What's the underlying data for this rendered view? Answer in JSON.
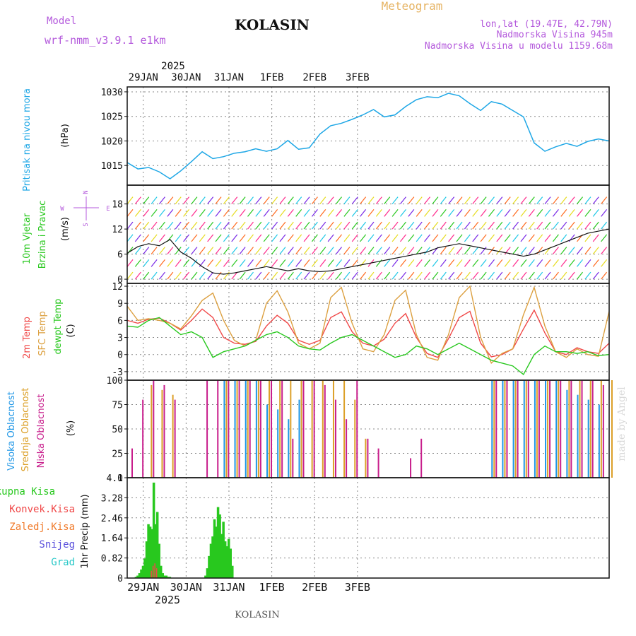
{
  "header": {
    "model_label": "Model",
    "model_name": "wrf-nmm_v3.9.1 e1km",
    "station": "KOLASIN",
    "title": "Meteogram",
    "coords": "lon,lat (19.47E, 42.79N)",
    "elev": "Nadmorska Visina 945m",
    "elev_model": "Nadmorska Visina u modelu 1159.68m",
    "footer": "KOLASIN",
    "watermark": "made by Angel"
  },
  "axis": {
    "year": "2025",
    "dates": [
      "29JAN",
      "30JAN",
      "31JAN",
      "1FEB",
      "2FEB",
      "3FEB"
    ]
  },
  "labels": {
    "p1_title": "Pritisak na nivou mora",
    "p1_unit": "(hPa)",
    "p2_a": "10m Vjetar",
    "p2_b": "Brzina i Pravac",
    "p2_unit": "(m/s)",
    "compass_n": "N",
    "compass_s": "S",
    "compass_e": "E",
    "compass_w": "W",
    "p3_a": "2m Temp",
    "p3_b": "SFC Temp",
    "p3_c": "dewpt Temp",
    "p3_unit": "(C)",
    "p4_a": "Visoka Oblacnost",
    "p4_b": "Srednja Oblacnost",
    "p4_c": "Niska Oblacnost",
    "p4_unit": "(%)",
    "p5_unit": "1hr Precip (mm)",
    "leg_total": "Ukupna Kisa",
    "leg_conv": "Konvek.Kisa",
    "leg_frz": "Zaledj.Kisa",
    "leg_snow": "Snijeg",
    "leg_grad": "Grad"
  },
  "colors": {
    "pressure": "#1ea7e6",
    "t2m": "#f04848",
    "sfc": "#dca040",
    "dew": "#28c81e",
    "high_cloud": "#1e96e6",
    "mid_cloud": "#dca028",
    "low_cloud": "#c81e8c",
    "precip": "#28c81e",
    "model": "#b45adc",
    "title": "#e6b464"
  },
  "chart_data": [
    {
      "type": "line",
      "name": "pressure",
      "xlabel": "",
      "ylabel": "Pritisak na nivou mora (hPa)",
      "ylim": [
        1011,
        1031
      ],
      "yticks": [
        1015,
        1020,
        1025,
        1030
      ],
      "grid": true,
      "x_start": "2025-01-28 15:00",
      "x_step_hours": 6,
      "series": [
        {
          "values": [
            1015.6,
            1014.3,
            1014.6,
            1013.7,
            1012.3,
            1013.9,
            1015.8,
            1017.8,
            1016.4,
            1016.8,
            1017.5,
            1017.8,
            1018.4,
            1017.9,
            1018.4,
            1020.1,
            1018.3,
            1018.6,
            1021.4,
            1023.1,
            1023.6,
            1024.4,
            1025.3,
            1026.4,
            1024.9,
            1025.3,
            1027.0,
            1028.4,
            1029.0,
            1028.8,
            1029.7,
            1029.2,
            1027.6,
            1026.2,
            1028.0,
            1027.5,
            1026.2,
            1024.9,
            1019.6,
            1017.9,
            1018.8,
            1019.5,
            1018.9,
            1019.9,
            1020.4,
            1020.0
          ]
        }
      ]
    },
    {
      "type": "line",
      "name": "wind",
      "xlabel": "",
      "ylabel": "10m Vjetar Brzina i Pravac (m/s)",
      "ylim": [
        -1,
        22.5
      ],
      "yticks": [
        0,
        6,
        12,
        18
      ],
      "grid": true,
      "x_start": "2025-01-28 15:00",
      "x_step_hours": 6,
      "series": [
        {
          "name": "speed",
          "values": [
            6.2,
            7.8,
            8.5,
            8.0,
            9.5,
            6.5,
            5.0,
            3.0,
            1.5,
            1.2,
            1.5,
            2.0,
            2.5,
            3.0,
            2.5,
            2.0,
            2.5,
            2.0,
            1.8,
            2.0,
            2.5,
            3.0,
            3.5,
            4.0,
            4.5,
            5.0,
            5.5,
            6.0,
            6.5,
            7.5,
            8.0,
            8.5,
            8.0,
            7.5,
            7.0,
            6.5,
            6.0,
            5.5,
            6.0,
            7.0,
            8.0,
            9.0,
            10.0,
            11.0,
            11.5,
            12.0
          ]
        }
      ]
    },
    {
      "type": "line",
      "name": "temperature",
      "xlabel": "",
      "ylabel": "(C)",
      "ylim": [
        -4.5,
        12.5
      ],
      "yticks": [
        -3,
        0,
        3,
        6,
        9,
        12
      ],
      "grid": true,
      "x_start": "2025-01-28 15:00",
      "x_step_hours": 6,
      "series": [
        {
          "name": "2m Temp",
          "values": [
            6.0,
            5.5,
            6.2,
            6.4,
            5.5,
            4.3,
            6.0,
            8.0,
            6.5,
            3.0,
            2.0,
            1.8,
            2.3,
            5.0,
            6.9,
            5.5,
            2.5,
            1.8,
            2.5,
            6.5,
            7.5,
            4.0,
            2.0,
            1.5,
            2.7,
            5.5,
            7.2,
            3.0,
            0.2,
            -0.5,
            2.8,
            6.5,
            7.6,
            2.0,
            -0.4,
            0.0,
            1.0,
            4.5,
            7.8,
            3.8,
            0.5,
            0.0,
            1.2,
            0.5,
            0.2,
            2.0
          ]
        },
        {
          "name": "SFC Temp",
          "values": [
            8.5,
            6.0,
            6.3,
            6.0,
            5.5,
            4.5,
            6.8,
            9.5,
            10.8,
            6.0,
            2.5,
            1.5,
            2.5,
            9.0,
            11.2,
            7.5,
            2.0,
            1.0,
            2.0,
            10.0,
            11.8,
            5.5,
            1.0,
            0.5,
            3.5,
            9.5,
            11.3,
            3.5,
            -0.5,
            -1.0,
            3.5,
            10.0,
            12.0,
            3.0,
            -1.5,
            0.2,
            1.0,
            7.0,
            11.8,
            5.0,
            0.5,
            -0.5,
            1.0,
            0.0,
            -0.3,
            7.6
          ]
        },
        {
          "name": "dewpt Temp",
          "values": [
            5.0,
            4.8,
            6.0,
            6.5,
            5.0,
            3.5,
            4.0,
            3.0,
            -0.5,
            0.5,
            1.0,
            1.5,
            2.5,
            3.5,
            4.0,
            3.0,
            1.5,
            1.0,
            0.8,
            2.0,
            3.0,
            3.5,
            2.5,
            1.5,
            0.5,
            -0.5,
            0.0,
            1.5,
            1.0,
            0.0,
            1.0,
            2.0,
            1.0,
            0.0,
            -1.0,
            -1.5,
            -2.0,
            -3.5,
            0.0,
            1.5,
            0.5,
            0.5,
            0.2,
            0.5,
            -0.2,
            0.0
          ]
        }
      ]
    },
    {
      "type": "bar",
      "name": "cloud",
      "xlabel": "",
      "ylabel": "(%)",
      "ylim": [
        0,
        100
      ],
      "yticks": [
        0,
        25,
        50,
        75,
        100
      ],
      "grid": true,
      "x_start": "2025-01-28 15:00",
      "x_step_hours": 6,
      "series": [
        {
          "name": "Visoka Oblacnost",
          "values": [
            0,
            0,
            0,
            0,
            0,
            0,
            0,
            0,
            0,
            100,
            100,
            100,
            100,
            75,
            70,
            60,
            80,
            0,
            0,
            0,
            0,
            0,
            0,
            0,
            0,
            0,
            0,
            0,
            0,
            0,
            0,
            0,
            0,
            0,
            100,
            100,
            100,
            100,
            100,
            100,
            100,
            90,
            85,
            80,
            75,
            0
          ]
        },
        {
          "name": "Srednja Oblacnost",
          "values": [
            0,
            0,
            95,
            90,
            85,
            0,
            0,
            0,
            0,
            100,
            100,
            100,
            100,
            100,
            100,
            100,
            100,
            100,
            100,
            100,
            100,
            80,
            40,
            0,
            0,
            0,
            0,
            0,
            0,
            0,
            0,
            0,
            0,
            0,
            100,
            100,
            100,
            100,
            100,
            100,
            100,
            100,
            100,
            100,
            100,
            100
          ]
        },
        {
          "name": "Niska Oblacnost",
          "values": [
            30,
            80,
            100,
            95,
            80,
            0,
            0,
            100,
            100,
            100,
            100,
            100,
            100,
            100,
            100,
            40,
            100,
            100,
            95,
            80,
            60,
            100,
            40,
            30,
            0,
            0,
            20,
            40,
            0,
            0,
            0,
            0,
            0,
            0,
            100,
            100,
            100,
            100,
            100,
            100,
            100,
            100,
            100,
            100,
            95,
            0
          ]
        }
      ]
    },
    {
      "type": "bar",
      "name": "precip",
      "xlabel": "",
      "ylabel": "1hr Precip (mm)",
      "ylim": [
        0,
        4.1
      ],
      "yticks": [
        0,
        0.82,
        1.64,
        2.46,
        3.28,
        4.1
      ],
      "grid": true,
      "x_start": "2025-01-28 15:00",
      "x_step_hours": 1,
      "series": [
        {
          "name": "Ukupna Kisa",
          "values": [
            0,
            0,
            0,
            0,
            0.05,
            0.1,
            0.2,
            0.35,
            0.5,
            0.8,
            1.5,
            2.2,
            2.1,
            2.0,
            3.9,
            2.2,
            2.7,
            1.4,
            0.5,
            0.2,
            0.1,
            0.1,
            0.05,
            0.05,
            0,
            0,
            0,
            0,
            0,
            0,
            0,
            0,
            0,
            0,
            0,
            0,
            0,
            0,
            0,
            0,
            0,
            0,
            0,
            0.1,
            0.4,
            0.9,
            1.4,
            1.7,
            2.4,
            2.1,
            2.9,
            2.6,
            1.8,
            2.3,
            1.5,
            1.3,
            1.6,
            1.2,
            0.5,
            0,
            0,
            0,
            0,
            0
          ]
        },
        {
          "name": "Konvek.Kisa",
          "values": [
            0,
            0,
            0,
            0,
            0,
            0,
            0,
            0,
            0,
            0,
            0,
            0,
            0,
            0.3,
            0.5,
            0.6,
            0.4,
            0,
            0,
            0,
            0,
            0,
            0,
            0,
            0,
            0,
            0,
            0,
            0,
            0,
            0,
            0,
            0,
            0,
            0,
            0,
            0,
            0,
            0,
            0,
            0,
            0,
            0,
            0,
            0,
            0,
            0,
            0,
            0,
            0,
            0,
            0,
            0,
            0,
            0,
            0,
            0,
            0,
            0,
            0,
            0,
            0,
            0,
            0
          ]
        }
      ]
    }
  ]
}
